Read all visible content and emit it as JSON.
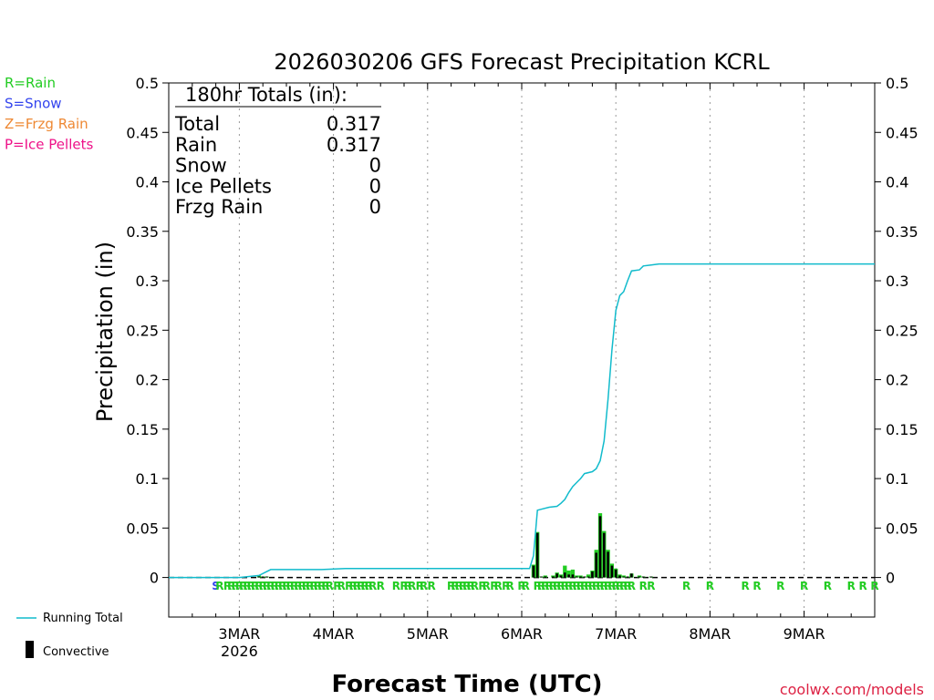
{
  "chart_data": {
    "type": "bar",
    "title": "2026030206 GFS Forecast Precipitation KCRL",
    "xlabel": "Forecast Time (UTC)",
    "ylabel": "Precipitation (in)",
    "credit": "coolwx.com/models",
    "ylim": [
      -0.04,
      0.5
    ],
    "yticks": [
      0,
      0.05,
      0.1,
      0.15,
      0.2,
      0.25,
      0.3,
      0.35,
      0.4,
      0.45,
      0.5
    ],
    "ytick_labels": [
      "0",
      "0.05",
      "0.1",
      "0.15",
      "0.2",
      "0.25",
      "0.3",
      "0.35",
      "0.4",
      "0.45",
      "0.5"
    ],
    "x_hours_start": 6,
    "x_hours_end": 186,
    "date_ticks": [
      {
        "hour": 24,
        "label": "3MAR",
        "sub": "2026"
      },
      {
        "hour": 48,
        "label": "4MAR",
        "sub": ""
      },
      {
        "hour": 72,
        "label": "5MAR",
        "sub": ""
      },
      {
        "hour": 96,
        "label": "6MAR",
        "sub": ""
      },
      {
        "hour": 120,
        "label": "7MAR",
        "sub": ""
      },
      {
        "hour": 144,
        "label": "8MAR",
        "sub": ""
      },
      {
        "hour": 168,
        "label": "9MAR",
        "sub": ""
      }
    ],
    "type_legend": [
      {
        "label": "R=Rain",
        "color": "#22cc22"
      },
      {
        "label": "S=Snow",
        "color": "#3344ee"
      },
      {
        "label": "Z=Frzg Rain",
        "color": "#ee8833"
      },
      {
        "label": "P=Ice Pellets",
        "color": "#ee1188"
      }
    ],
    "totals_box": {
      "header": "180hr Totals (in):",
      "rows": [
        {
          "label": "Total",
          "value": "0.317"
        },
        {
          "label": "Rain",
          "value": "0.317"
        },
        {
          "label": "Snow",
          "value": "0"
        },
        {
          "label": "Ice Pellets",
          "value": "0"
        },
        {
          "label": "Frzg Rain",
          "value": "0"
        }
      ]
    },
    "series_legend": {
      "running_total": "Running Total",
      "convective": "Convective"
    },
    "colors": {
      "running_total": "#11bbcc",
      "precip": "#22cc22",
      "convective": "#000000",
      "rain": "#22cc22",
      "snow": "#3344ee"
    },
    "running_total": [
      [
        6,
        0
      ],
      [
        24,
        0
      ],
      [
        29,
        0.002
      ],
      [
        31,
        0.006
      ],
      [
        32,
        0.008
      ],
      [
        45,
        0.008
      ],
      [
        51,
        0.009
      ],
      [
        96,
        0.009
      ],
      [
        98,
        0.009
      ],
      [
        99,
        0.022
      ],
      [
        100,
        0.068
      ],
      [
        101,
        0.069
      ],
      [
        103,
        0.071
      ],
      [
        105,
        0.072
      ],
      [
        106,
        0.075
      ],
      [
        107,
        0.079
      ],
      [
        108,
        0.086
      ],
      [
        109,
        0.092
      ],
      [
        111,
        0.1
      ],
      [
        112,
        0.105
      ],
      [
        114,
        0.107
      ],
      [
        115,
        0.11
      ],
      [
        116,
        0.118
      ],
      [
        117,
        0.138
      ],
      [
        118,
        0.18
      ],
      [
        119,
        0.23
      ],
      [
        120,
        0.27
      ],
      [
        121,
        0.285
      ],
      [
        122,
        0.289
      ],
      [
        123,
        0.3
      ],
      [
        124,
        0.31
      ],
      [
        126,
        0.311
      ],
      [
        127,
        0.315
      ],
      [
        129,
        0.316
      ],
      [
        131,
        0.317
      ],
      [
        186,
        0.317
      ]
    ],
    "bars": {
      "hours": [
        29,
        30,
        31,
        99,
        100,
        101,
        102,
        104,
        105,
        106,
        107,
        108,
        109,
        110,
        111,
        112,
        113,
        114,
        115,
        116,
        117,
        118,
        119,
        120,
        121,
        122,
        123,
        124,
        126,
        127,
        129
      ],
      "values": [
        0.002,
        0.001,
        0.001,
        0.013,
        0.046,
        0.001,
        0.002,
        0.002,
        0.005,
        0.003,
        0.012,
        0.007,
        0.008,
        0.002,
        0.002,
        0.001,
        0.003,
        0.007,
        0.028,
        0.065,
        0.047,
        0.028,
        0.014,
        0.009,
        0.003,
        0.002,
        0.001,
        0.004,
        0.002,
        0.001,
        0.001
      ],
      "convective": [
        0.001,
        0.001,
        0.001,
        0.012,
        0.045,
        0.001,
        0.001,
        0.001,
        0.004,
        0.002,
        0.005,
        0.003,
        0.003,
        0.001,
        0.001,
        0.001,
        0.001,
        0.006,
        0.025,
        0.062,
        0.045,
        0.026,
        0.012,
        0.008,
        0.002,
        0.001,
        0.001,
        0.004,
        0.001,
        0.001,
        0.001
      ]
    },
    "ptype_marks": [
      {
        "hour": 18,
        "t": "S"
      },
      {
        "hour": 19,
        "t": "R"
      },
      {
        "hour": 21,
        "t": "R"
      },
      {
        "hour": 22,
        "t": "R"
      },
      {
        "hour": 23,
        "t": "R"
      },
      {
        "hour": 24,
        "t": "R"
      },
      {
        "hour": 25,
        "t": "R"
      },
      {
        "hour": 26,
        "t": "R"
      },
      {
        "hour": 27,
        "t": "R"
      },
      {
        "hour": 28,
        "t": "R"
      },
      {
        "hour": 29,
        "t": "R"
      },
      {
        "hour": 30,
        "t": "R"
      },
      {
        "hour": 31,
        "t": "R"
      },
      {
        "hour": 32,
        "t": "R"
      },
      {
        "hour": 33,
        "t": "R"
      },
      {
        "hour": 34,
        "t": "R"
      },
      {
        "hour": 35,
        "t": "R"
      },
      {
        "hour": 36,
        "t": "R"
      },
      {
        "hour": 37,
        "t": "R"
      },
      {
        "hour": 38,
        "t": "R"
      },
      {
        "hour": 39,
        "t": "R"
      },
      {
        "hour": 40,
        "t": "R"
      },
      {
        "hour": 41,
        "t": "R"
      },
      {
        "hour": 42,
        "t": "R"
      },
      {
        "hour": 43,
        "t": "R"
      },
      {
        "hour": 44,
        "t": "R"
      },
      {
        "hour": 45,
        "t": "R"
      },
      {
        "hour": 46,
        "t": "R"
      },
      {
        "hour": 47,
        "t": "R"
      },
      {
        "hour": 49,
        "t": "R"
      },
      {
        "hour": 50,
        "t": "R"
      },
      {
        "hour": 52,
        "t": "R"
      },
      {
        "hour": 53,
        "t": "R"
      },
      {
        "hour": 54,
        "t": "R"
      },
      {
        "hour": 55,
        "t": "R"
      },
      {
        "hour": 56,
        "t": "R"
      },
      {
        "hour": 57,
        "t": "R"
      },
      {
        "hour": 58,
        "t": "R"
      },
      {
        "hour": 60,
        "t": "R"
      },
      {
        "hour": 64,
        "t": "R"
      },
      {
        "hour": 66,
        "t": "R"
      },
      {
        "hour": 67,
        "t": "R"
      },
      {
        "hour": 68,
        "t": "R"
      },
      {
        "hour": 70,
        "t": "R"
      },
      {
        "hour": 71,
        "t": "R"
      },
      {
        "hour": 73,
        "t": "R"
      },
      {
        "hour": 78,
        "t": "R"
      },
      {
        "hour": 79,
        "t": "R"
      },
      {
        "hour": 80,
        "t": "R"
      },
      {
        "hour": 81,
        "t": "R"
      },
      {
        "hour": 82,
        "t": "R"
      },
      {
        "hour": 83,
        "t": "R"
      },
      {
        "hour": 84,
        "t": "R"
      },
      {
        "hour": 86,
        "t": "R"
      },
      {
        "hour": 87,
        "t": "R"
      },
      {
        "hour": 89,
        "t": "R"
      },
      {
        "hour": 90,
        "t": "R"
      },
      {
        "hour": 92,
        "t": "R"
      },
      {
        "hour": 93,
        "t": "R"
      },
      {
        "hour": 96,
        "t": "R"
      },
      {
        "hour": 97,
        "t": "R"
      },
      {
        "hour": 100,
        "t": "R"
      },
      {
        "hour": 101,
        "t": "R"
      },
      {
        "hour": 102,
        "t": "R"
      },
      {
        "hour": 103,
        "t": "R"
      },
      {
        "hour": 104,
        "t": "R"
      },
      {
        "hour": 105,
        "t": "R"
      },
      {
        "hour": 106,
        "t": "R"
      },
      {
        "hour": 107,
        "t": "R"
      },
      {
        "hour": 108,
        "t": "R"
      },
      {
        "hour": 109,
        "t": "R"
      },
      {
        "hour": 110,
        "t": "R"
      },
      {
        "hour": 111,
        "t": "R"
      },
      {
        "hour": 112,
        "t": "R"
      },
      {
        "hour": 113,
        "t": "R"
      },
      {
        "hour": 114,
        "t": "R"
      },
      {
        "hour": 115,
        "t": "R"
      },
      {
        "hour": 116,
        "t": "R"
      },
      {
        "hour": 117,
        "t": "R"
      },
      {
        "hour": 118,
        "t": "R"
      },
      {
        "hour": 119,
        "t": "R"
      },
      {
        "hour": 120,
        "t": "R"
      },
      {
        "hour": 121,
        "t": "R"
      },
      {
        "hour": 122,
        "t": "R"
      },
      {
        "hour": 123,
        "t": "R"
      },
      {
        "hour": 124,
        "t": "R"
      },
      {
        "hour": 127,
        "t": "R"
      },
      {
        "hour": 129,
        "t": "R"
      },
      {
        "hour": 138,
        "t": "R"
      },
      {
        "hour": 144,
        "t": "R"
      },
      {
        "hour": 153,
        "t": "R"
      },
      {
        "hour": 156,
        "t": "R"
      },
      {
        "hour": 162,
        "t": "R"
      },
      {
        "hour": 168,
        "t": "R"
      },
      {
        "hour": 174,
        "t": "R"
      },
      {
        "hour": 180,
        "t": "R"
      },
      {
        "hour": 183,
        "t": "R"
      },
      {
        "hour": 186,
        "t": "R"
      }
    ]
  }
}
